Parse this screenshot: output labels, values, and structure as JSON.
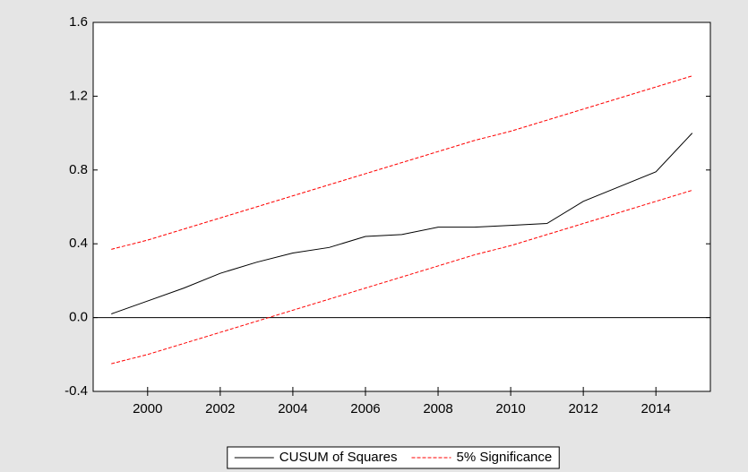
{
  "chart_data": {
    "type": "line",
    "x": [
      1999,
      2000,
      2001,
      2002,
      2003,
      2004,
      2005,
      2006,
      2007,
      2008,
      2009,
      2010,
      2011,
      2012,
      2013,
      2014,
      2015
    ],
    "series": [
      {
        "name": "CUSUM of Squares",
        "color": "#000000",
        "dash": false,
        "values": [
          0.02,
          0.09,
          0.16,
          0.24,
          0.3,
          0.35,
          0.38,
          0.44,
          0.45,
          0.49,
          0.49,
          0.5,
          0.51,
          0.63,
          0.71,
          0.79,
          1.0
        ]
      },
      {
        "name": "5% Significance",
        "color": "#ff0000",
        "dash": true,
        "values": [
          0.37,
          0.42,
          0.48,
          0.54,
          0.6,
          0.66,
          0.72,
          0.78,
          0.84,
          0.9,
          0.96,
          1.01,
          1.07,
          1.13,
          1.19,
          1.25,
          1.31
        ]
      },
      {
        "color": "#ff0000",
        "dash": true,
        "values": [
          -0.25,
          -0.2,
          -0.14,
          -0.08,
          -0.02,
          0.04,
          0.1,
          0.16,
          0.22,
          0.28,
          0.34,
          0.39,
          0.45,
          0.51,
          0.57,
          0.63,
          0.69
        ]
      }
    ],
    "xlim": [
      1998.5,
      2015.5
    ],
    "xticks": [
      2000,
      2002,
      2004,
      2006,
      2008,
      2010,
      2012,
      2014
    ],
    "ylim": [
      -0.4,
      1.6
    ],
    "yticks": [
      -0.4,
      {
        "value": 0,
        "label": "0.0"
      },
      0.4,
      0.8,
      1.2,
      1.6
    ],
    "zero_line": true,
    "legend": "bottom"
  }
}
